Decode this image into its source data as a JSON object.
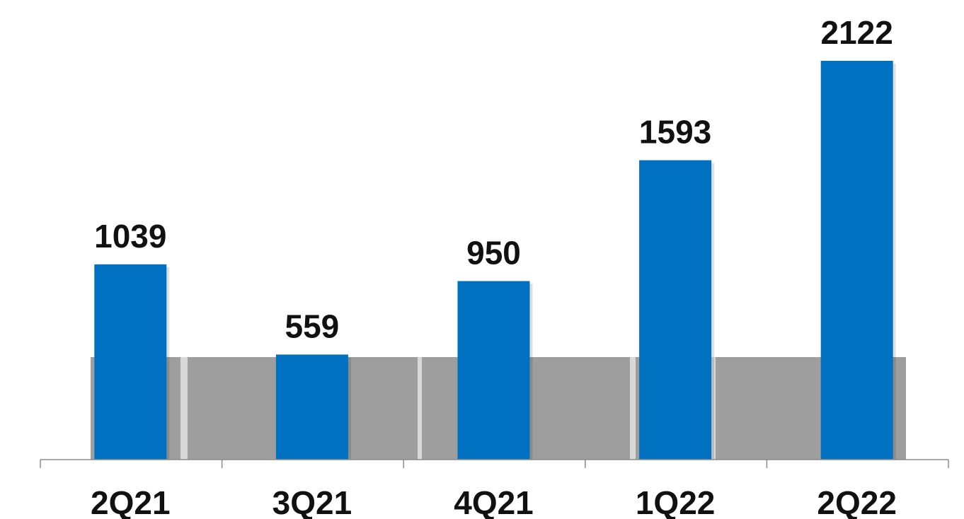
{
  "chart_data": {
    "type": "bar",
    "categories": [
      "2Q21",
      "3Q21",
      "4Q21",
      "1Q22",
      "2Q22"
    ],
    "values": [
      1039,
      559,
      950,
      1593,
      2122
    ],
    "data_labels": [
      "1039",
      "559",
      "950",
      "1593",
      "2122"
    ],
    "title": "",
    "xlabel": "",
    "ylabel": "",
    "ylim": [
      0,
      2122
    ],
    "grid": false,
    "legend": "none",
    "colors": {
      "bar": "#0070C0",
      "background_band": "#9E9E9E",
      "axis": "#8C8C8C",
      "text": "#111111"
    }
  }
}
